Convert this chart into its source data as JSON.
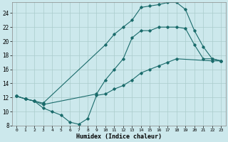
{
  "xlabel": "Humidex (Indice chaleur)",
  "bg_color": "#cce8ec",
  "grid_color": "#aacccc",
  "line_color": "#1a6b6b",
  "xlim": [
    -0.5,
    23.5
  ],
  "ylim": [
    8,
    25.5
  ],
  "xticks": [
    0,
    1,
    2,
    3,
    4,
    5,
    6,
    7,
    8,
    9,
    10,
    11,
    12,
    13,
    14,
    15,
    16,
    17,
    18,
    19,
    20,
    21,
    22,
    23
  ],
  "yticks": [
    8,
    10,
    12,
    14,
    16,
    18,
    20,
    22,
    24
  ],
  "line1_x": [
    0,
    1,
    2,
    3,
    4,
    5,
    6,
    7,
    8,
    9,
    10,
    11,
    12,
    13,
    14,
    15,
    16,
    17,
    18,
    22,
    23
  ],
  "line1_y": [
    12.2,
    11.8,
    11.5,
    10.5,
    10.0,
    9.5,
    8.5,
    8.2,
    9.0,
    12.3,
    12.5,
    13.2,
    13.7,
    14.5,
    15.5,
    16.0,
    16.5,
    17.0,
    17.5,
    17.2,
    17.2
  ],
  "line2_x": [
    0,
    1,
    2,
    3,
    10,
    11,
    12,
    13,
    14,
    15,
    16,
    17,
    18,
    19,
    20,
    21,
    22,
    23
  ],
  "line2_y": [
    12.2,
    11.8,
    11.5,
    11.2,
    19.5,
    21.0,
    22.0,
    23.0,
    24.8,
    25.0,
    25.2,
    25.5,
    25.5,
    24.5,
    21.5,
    19.2,
    17.5,
    17.2
  ],
  "line3_x": [
    0,
    1,
    2,
    3,
    9,
    10,
    11,
    12,
    13,
    14,
    15,
    16,
    17,
    18,
    19,
    20,
    21,
    22,
    23
  ],
  "line3_y": [
    12.2,
    11.8,
    11.5,
    11.0,
    12.5,
    14.5,
    16.0,
    17.5,
    20.5,
    21.5,
    21.5,
    22.0,
    22.0,
    22.0,
    21.8,
    19.5,
    17.5,
    17.5,
    17.2
  ]
}
